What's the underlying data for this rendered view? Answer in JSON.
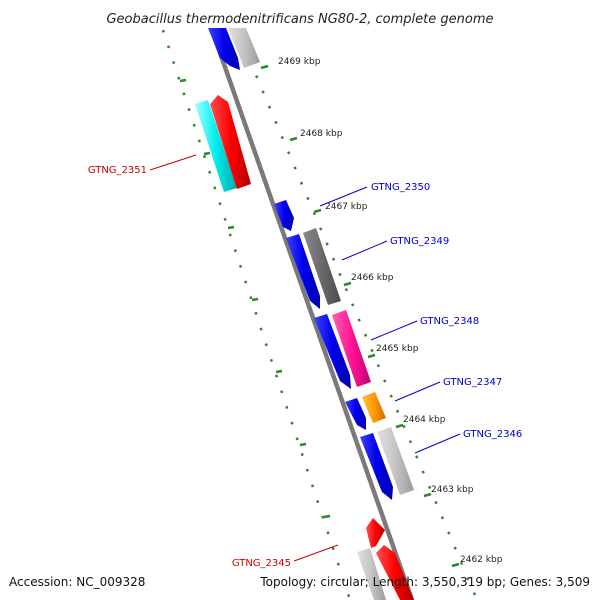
{
  "title": "Geobacillus thermodenitrificans NG80-2, complete genome",
  "footer": {
    "accession": "Accession: NC_009328",
    "stats": "Topology: circular; Length: 3,550,319 bp; Genes: 3,509"
  },
  "ticks": [
    {
      "label": "2469 kbp",
      "kbp": 2469
    },
    {
      "label": "2468 kbp",
      "kbp": 2468
    },
    {
      "label": "2467 kbp",
      "kbp": 2467
    },
    {
      "label": "2466 kbp",
      "kbp": 2466
    },
    {
      "label": "2465 kbp",
      "kbp": 2465
    },
    {
      "label": "2464 kbp",
      "kbp": 2464
    },
    {
      "label": "2463 kbp",
      "kbp": 2463
    },
    {
      "label": "2462 kbp",
      "kbp": 2462
    }
  ],
  "genes": [
    {
      "label": "GTNG_2351",
      "side": "left",
      "color": "#cc0000"
    },
    {
      "label": "GTNG_2350",
      "side": "right",
      "color": "#0000cc"
    },
    {
      "label": "GTNG_2349",
      "side": "right",
      "color": "#0000cc"
    },
    {
      "label": "GTNG_2348",
      "side": "right",
      "color": "#0000cc"
    },
    {
      "label": "GTNG_2347",
      "side": "right",
      "color": "#0000cc"
    },
    {
      "label": "GTNG_2346",
      "side": "right",
      "color": "#0000cc"
    },
    {
      "label": "GTNG_2345",
      "side": "left",
      "color": "#cc0000"
    }
  ],
  "colors": {
    "backbone": "#808080",
    "ruler": "#2a8a2a",
    "forward_strand": "#0000ee",
    "reverse_strand": "#ff0000",
    "cyan_track": "#00e5ee",
    "grey_track": "#bdbdbd",
    "dark_grey_track": "#6e6e6e",
    "magenta_track": "#ff1493",
    "orange_track": "#ff9900"
  }
}
